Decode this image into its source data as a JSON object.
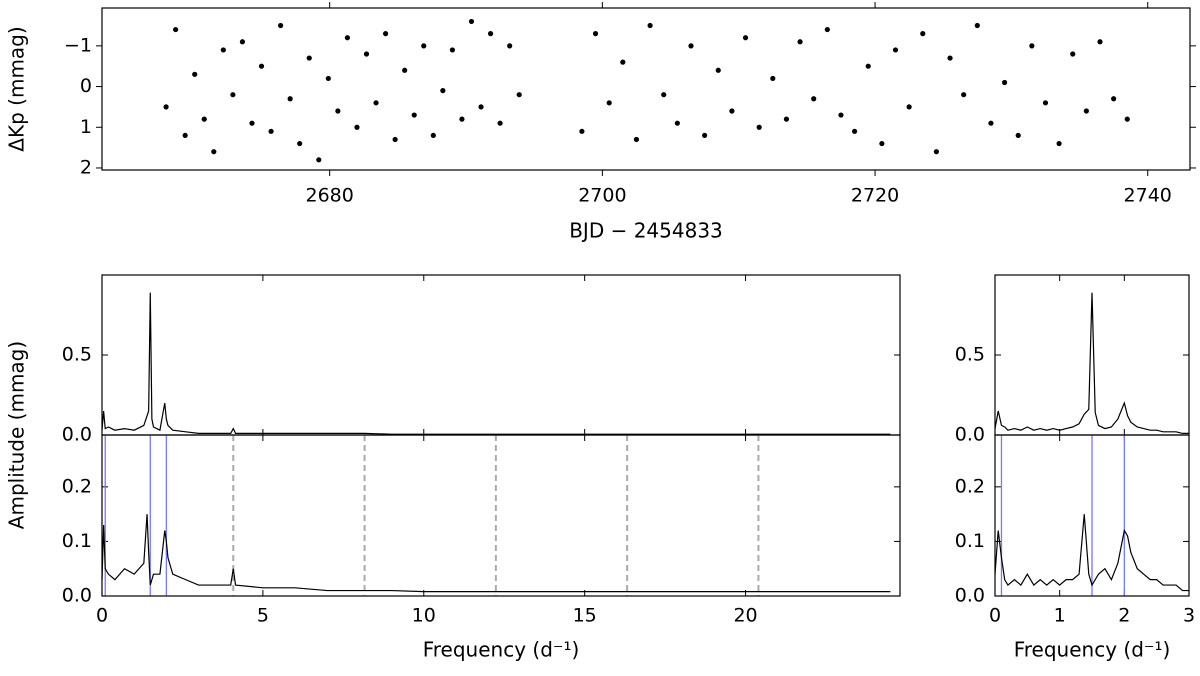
{
  "chart_data": [
    {
      "type": "scatter",
      "ylabel": "ΔKp (mmag)",
      "xlabel": "BJD − 2454833",
      "color": "#000000",
      "xlim": [
        2663.3,
        2743.1
      ],
      "xticks": [
        2680,
        2700,
        2720,
        2740
      ],
      "ylim": [
        2.05,
        -1.93
      ],
      "yticks": [
        {
          "value": -1,
          "label": "−1"
        },
        0,
        1,
        2
      ],
      "x": [
        2668.0,
        2668.7,
        2669.4,
        2670.1,
        2670.8,
        2671.5,
        2672.2,
        2672.9,
        2673.6,
        2674.3,
        2675.0,
        2675.7,
        2676.4,
        2677.1,
        2677.8,
        2678.5,
        2679.2,
        2679.9,
        2680.6,
        2681.3,
        2682.0,
        2682.7,
        2683.4,
        2684.1,
        2684.8,
        2685.5,
        2686.2,
        2686.9,
        2687.6,
        2688.3,
        2689.0,
        2689.7,
        2690.4,
        2691.1,
        2691.8,
        2692.5,
        2693.2,
        2693.9,
        2698.5,
        2699.5,
        2700.5,
        2701.5,
        2702.5,
        2703.5,
        2704.5,
        2705.5,
        2706.5,
        2707.5,
        2708.5,
        2709.5,
        2710.5,
        2711.5,
        2712.5,
        2713.5,
        2714.5,
        2715.5,
        2716.5,
        2717.5,
        2718.5,
        2719.5,
        2720.5,
        2721.5,
        2722.5,
        2723.5,
        2724.5,
        2725.5,
        2726.5,
        2727.5,
        2728.5,
        2729.5,
        2730.5,
        2731.5,
        2732.5,
        2733.5,
        2734.5,
        2735.5,
        2736.5,
        2737.5,
        2738.5
      ],
      "values": [
        0.5,
        -1.4,
        1.2,
        -0.3,
        0.8,
        1.6,
        -0.9,
        0.2,
        -1.1,
        0.9,
        -0.5,
        1.1,
        -1.5,
        0.3,
        1.4,
        -0.7,
        1.8,
        -0.2,
        0.6,
        -1.2,
        1.0,
        -0.8,
        0.4,
        -1.3,
        1.3,
        -0.4,
        0.7,
        -1.0,
        1.2,
        0.1,
        -0.9,
        0.8,
        -1.6,
        0.5,
        -1.3,
        0.9,
        -1.0,
        0.2,
        1.1,
        -1.3,
        0.4,
        -0.6,
        1.3,
        -1.5,
        0.2,
        0.9,
        -1.0,
        1.2,
        -0.4,
        0.6,
        -1.2,
        1.0,
        -0.2,
        0.8,
        -1.1,
        0.3,
        -1.4,
        0.7,
        1.1,
        -0.5,
        1.4,
        -0.9,
        0.5,
        -1.3,
        1.6,
        -0.7,
        0.2,
        -1.5,
        0.9,
        -0.1,
        1.2,
        -1.0,
        0.4,
        1.4,
        -0.8,
        0.6,
        -1.1,
        0.3,
        0.8
      ]
    },
    {
      "type": "line",
      "ylabel": "Amplitude (mmag)",
      "color": "#000000",
      "xlim": [
        0,
        24.8
      ],
      "xticks": [
        0,
        5,
        10,
        15,
        20
      ],
      "ylim": [
        0,
        1.0
      ],
      "yticks": [
        {
          "value": 0,
          "label": "0.0"
        },
        {
          "value": 0.5,
          "label": "0.5"
        }
      ],
      "x": [
        0,
        0.05,
        0.1,
        0.2,
        0.4,
        0.7,
        1.0,
        1.3,
        1.4,
        1.45,
        1.5,
        1.55,
        1.6,
        1.8,
        1.95,
        2.0,
        2.05,
        2.2,
        2.6,
        3.0,
        3.5,
        4.0,
        4.08,
        4.15,
        5,
        6,
        7,
        8,
        8.16,
        9,
        10,
        11,
        12,
        13,
        14,
        15,
        16,
        17,
        18,
        19,
        20,
        21,
        22,
        23,
        24,
        24.5
      ],
      "values": [
        0.03,
        0.15,
        0.04,
        0.05,
        0.03,
        0.04,
        0.03,
        0.06,
        0.12,
        0.15,
        0.89,
        0.1,
        0.05,
        0.03,
        0.2,
        0.1,
        0.06,
        0.03,
        0.02,
        0.01,
        0.01,
        0.01,
        0.04,
        0.01,
        0.01,
        0.01,
        0.01,
        0.01,
        0.01,
        0.005,
        0.005,
        0.005,
        0.005,
        0.005,
        0.005,
        0.005,
        0.005,
        0.005,
        0.005,
        0.005,
        0.005,
        0.005,
        0.005,
        0.005,
        0.005,
        0.005
      ]
    },
    {
      "type": "line",
      "xlabel": "Frequency (d⁻¹)",
      "color": "#000000",
      "xlim": [
        0,
        24.8
      ],
      "xticks": [
        0,
        5,
        10,
        15,
        20
      ],
      "ylim": [
        0,
        0.295
      ],
      "yticks": [
        {
          "value": 0,
          "label": "0.0"
        },
        {
          "value": 0.1,
          "label": "0.1"
        },
        {
          "value": 0.2,
          "label": "0.2"
        }
      ],
      "x": [
        0,
        0.05,
        0.1,
        0.2,
        0.4,
        0.7,
        1.0,
        1.3,
        1.4,
        1.45,
        1.5,
        1.55,
        1.6,
        1.8,
        1.95,
        2.0,
        2.05,
        2.2,
        2.6,
        3.0,
        3.5,
        4.0,
        4.08,
        4.15,
        5,
        6,
        7,
        8,
        8.16,
        9,
        10,
        11,
        12,
        13,
        14,
        15,
        16,
        17,
        18,
        19,
        20,
        21,
        22,
        23,
        24,
        24.5
      ],
      "values": [
        0.03,
        0.13,
        0.05,
        0.04,
        0.03,
        0.05,
        0.04,
        0.06,
        0.15,
        0.08,
        0.02,
        0.03,
        0.04,
        0.04,
        0.12,
        0.1,
        0.07,
        0.04,
        0.03,
        0.02,
        0.02,
        0.02,
        0.05,
        0.02,
        0.015,
        0.015,
        0.01,
        0.01,
        0.01,
        0.01,
        0.008,
        0.008,
        0.008,
        0.008,
        0.008,
        0.008,
        0.008,
        0.008,
        0.008,
        0.008,
        0.008,
        0.008,
        0.008,
        0.008,
        0.008,
        0.008
      ],
      "vlines": {
        "color": "#7777ff",
        "x": [
          0.1,
          1.5,
          2.0
        ]
      },
      "dashed_vlines": {
        "color": "#aaaaaa",
        "x": [
          4.08,
          8.16,
          12.24,
          16.32,
          20.4
        ]
      }
    },
    {
      "type": "line",
      "color": "#000000",
      "xlim": [
        0,
        3
      ],
      "xticks": [
        0,
        1,
        2,
        3
      ],
      "ylim": [
        0,
        1.0
      ],
      "yticks": [
        {
          "value": 0,
          "label": "0.0"
        },
        {
          "value": 0.5,
          "label": "0.5"
        }
      ],
      "x": [
        0,
        0.05,
        0.1,
        0.15,
        0.2,
        0.3,
        0.4,
        0.5,
        0.6,
        0.7,
        0.8,
        0.9,
        1.0,
        1.1,
        1.2,
        1.3,
        1.38,
        1.45,
        1.5,
        1.55,
        1.6,
        1.7,
        1.8,
        1.9,
        1.95,
        2.0,
        2.05,
        2.1,
        2.2,
        2.3,
        2.4,
        2.5,
        2.6,
        2.7,
        2.8,
        2.9,
        3.0
      ],
      "values": [
        0.04,
        0.15,
        0.06,
        0.05,
        0.03,
        0.04,
        0.03,
        0.05,
        0.03,
        0.04,
        0.03,
        0.04,
        0.03,
        0.04,
        0.05,
        0.07,
        0.13,
        0.16,
        0.89,
        0.14,
        0.06,
        0.04,
        0.05,
        0.1,
        0.15,
        0.2,
        0.12,
        0.08,
        0.05,
        0.04,
        0.03,
        0.03,
        0.02,
        0.02,
        0.02,
        0.01,
        0.01
      ]
    },
    {
      "type": "line",
      "xlabel": "Frequency (d⁻¹)",
      "color": "#000000",
      "xlim": [
        0,
        3
      ],
      "xticks": [
        0,
        1,
        2,
        3
      ],
      "ylim": [
        0,
        0.295
      ],
      "yticks": [
        {
          "value": 0,
          "label": "0.0"
        },
        {
          "value": 0.1,
          "label": "0.1"
        },
        {
          "value": 0.2,
          "label": "0.2"
        }
      ],
      "x": [
        0,
        0.05,
        0.1,
        0.15,
        0.2,
        0.3,
        0.4,
        0.5,
        0.6,
        0.7,
        0.8,
        0.9,
        1.0,
        1.1,
        1.2,
        1.3,
        1.38,
        1.45,
        1.5,
        1.55,
        1.6,
        1.7,
        1.8,
        1.9,
        1.95,
        2.0,
        2.05,
        2.1,
        2.2,
        2.3,
        2.4,
        2.5,
        2.6,
        2.7,
        2.8,
        2.9,
        3.0
      ],
      "values": [
        0.04,
        0.12,
        0.07,
        0.03,
        0.02,
        0.03,
        0.02,
        0.04,
        0.02,
        0.03,
        0.02,
        0.03,
        0.02,
        0.03,
        0.03,
        0.04,
        0.15,
        0.04,
        0.02,
        0.03,
        0.04,
        0.05,
        0.03,
        0.06,
        0.09,
        0.12,
        0.11,
        0.08,
        0.05,
        0.04,
        0.03,
        0.03,
        0.02,
        0.02,
        0.02,
        0.01,
        0.01
      ],
      "vlines": {
        "color": "#7777ff",
        "x": [
          0.1,
          1.5,
          2.0
        ]
      }
    }
  ]
}
